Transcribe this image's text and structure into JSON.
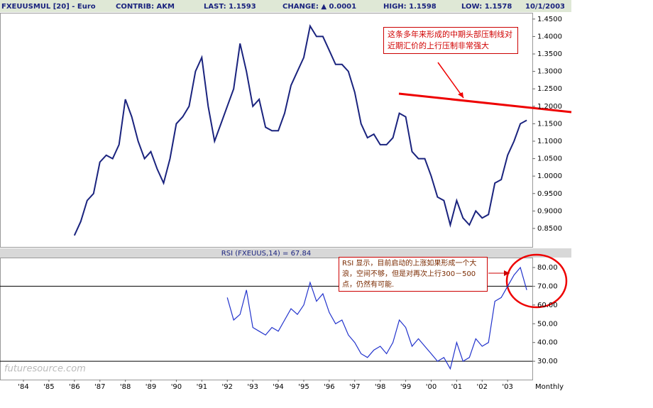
{
  "header": {
    "title": "FXEUUSMUL [20] - Euro",
    "contrib": "CONTRIB: AKM",
    "last": "LAST: 1.1593",
    "change": "CHANGE: ▲ 0.0001",
    "high": "HIGH: 1.1598",
    "low": "LOW: 1.1578",
    "date": "10/1/2003"
  },
  "chart_data": [
    {
      "type": "line",
      "color": "#1a237e",
      "x": [
        1986,
        1986.25,
        1986.5,
        1986.75,
        1987,
        1987.25,
        1987.5,
        1987.75,
        1988,
        1988.25,
        1988.5,
        1988.75,
        1989,
        1989.25,
        1989.5,
        1989.75,
        1990,
        1990.25,
        1990.5,
        1990.75,
        1991,
        1991.25,
        1991.5,
        1991.75,
        1992,
        1992.25,
        1992.5,
        1992.75,
        1993,
        1993.25,
        1993.5,
        1993.75,
        1994,
        1994.25,
        1994.5,
        1994.75,
        1995,
        1995.25,
        1995.5,
        1995.75,
        1996,
        1996.25,
        1996.5,
        1996.75,
        1997,
        1997.25,
        1997.5,
        1997.75,
        1998,
        1998.25,
        1998.5,
        1998.75,
        1999,
        1999.25,
        1999.5,
        1999.75,
        2000,
        2000.25,
        2000.5,
        2000.75,
        2001,
        2001.25,
        2001.5,
        2001.75,
        2002,
        2002.25,
        2002.5,
        2002.75,
        2003,
        2003.25,
        2003.5,
        2003.75
      ],
      "values": [
        0.83,
        0.87,
        0.93,
        0.95,
        1.04,
        1.06,
        1.05,
        1.09,
        1.22,
        1.17,
        1.1,
        1.05,
        1.07,
        1.02,
        0.98,
        1.05,
        1.15,
        1.17,
        1.2,
        1.3,
        1.34,
        1.2,
        1.1,
        1.15,
        1.2,
        1.25,
        1.38,
        1.3,
        1.2,
        1.22,
        1.14,
        1.13,
        1.13,
        1.18,
        1.26,
        1.3,
        1.34,
        1.43,
        1.4,
        1.4,
        1.36,
        1.32,
        1.32,
        1.3,
        1.24,
        1.15,
        1.11,
        1.12,
        1.09,
        1.09,
        1.11,
        1.18,
        1.17,
        1.07,
        1.05,
        1.05,
        1,
        0.94,
        0.93,
        0.86,
        0.93,
        0.88,
        0.86,
        0.9,
        0.88,
        0.89,
        0.98,
        0.99,
        1.06,
        1.1,
        1.15,
        1.16
      ],
      "xlim": [
        1983.08,
        2003.97
      ],
      "ylim": [
        0.797,
        1.468
      ],
      "yticks": [
        {
          "value": 0.85,
          "label": "0.8500"
        },
        {
          "value": 0.9,
          "label": "0.9000"
        },
        {
          "value": 0.95,
          "label": "0.9500"
        },
        {
          "value": 1.0,
          "label": "1.0000"
        },
        {
          "value": 1.05,
          "label": "1.0500"
        },
        {
          "value": 1.1,
          "label": "1.1000"
        },
        {
          "value": 1.15,
          "label": "1.1500"
        },
        {
          "value": 1.2,
          "label": "1.2000"
        },
        {
          "value": 1.25,
          "label": "1.2500"
        },
        {
          "value": 1.3,
          "label": "1.3000"
        },
        {
          "value": 1.35,
          "label": "1.3500"
        },
        {
          "value": 1.4,
          "label": "1.4000"
        },
        {
          "value": 1.45,
          "label": "1.4500"
        }
      ]
    },
    {
      "type": "line",
      "title": "RSI (FXEUUS,14) = 67.84",
      "color": "#2233cc",
      "x": [
        1992,
        1992.25,
        1992.5,
        1992.75,
        1993,
        1993.25,
        1993.5,
        1993.75,
        1994,
        1994.25,
        1994.5,
        1994.75,
        1995,
        1995.25,
        1995.5,
        1995.75,
        1996,
        1996.25,
        1996.5,
        1996.75,
        1997,
        1997.25,
        1997.5,
        1997.75,
        1998,
        1998.25,
        1998.5,
        1998.75,
        1999,
        1999.25,
        1999.5,
        1999.75,
        2000,
        2000.25,
        2000.5,
        2000.75,
        2001,
        2001.25,
        2001.5,
        2001.75,
        2002,
        2002.25,
        2002.5,
        2002.75,
        2003,
        2003.25,
        2003.5,
        2003.75
      ],
      "values": [
        64,
        52,
        55,
        68,
        48,
        46,
        44,
        48,
        46,
        52,
        58,
        55,
        60,
        72,
        62,
        66,
        56,
        50,
        52,
        44,
        40,
        34,
        32,
        36,
        38,
        34,
        40,
        52,
        48,
        38,
        42,
        38,
        34,
        30,
        32,
        26,
        40,
        30,
        32,
        42,
        38,
        40,
        62,
        64,
        70,
        76,
        80,
        68
      ],
      "xlim": [
        1983.08,
        2003.97
      ],
      "ylim": [
        20.2,
        85.3
      ],
      "yticks": [
        {
          "value": 30,
          "label": "30.00"
        },
        {
          "value": 40,
          "label": "40.00"
        },
        {
          "value": 50,
          "label": "50.00"
        },
        {
          "value": 60,
          "label": "60.00"
        },
        {
          "value": 70,
          "label": "70.00"
        },
        {
          "value": 80,
          "label": "80.00"
        }
      ],
      "hlines": [
        70,
        30
      ],
      "xticks": [
        {
          "value": 1984,
          "label": "'84"
        },
        {
          "value": 1985,
          "label": "'85"
        },
        {
          "value": 1986,
          "label": "'86"
        },
        {
          "value": 1987,
          "label": "'87"
        },
        {
          "value": 1988,
          "label": "'88"
        },
        {
          "value": 1989,
          "label": "'89"
        },
        {
          "value": 1990,
          "label": "'90"
        },
        {
          "value": 1991,
          "label": "'91"
        },
        {
          "value": 1992,
          "label": "'92"
        },
        {
          "value": 1993,
          "label": "'93"
        },
        {
          "value": 1994,
          "label": "'94"
        },
        {
          "value": 1995,
          "label": "'95"
        },
        {
          "value": 1996,
          "label": "'96"
        },
        {
          "value": 1997,
          "label": "'97"
        },
        {
          "value": 1998,
          "label": "'98"
        },
        {
          "value": 1999,
          "label": "'99"
        },
        {
          "value": 2000,
          "label": "'00"
        },
        {
          "value": 2001,
          "label": "'01"
        },
        {
          "value": 2002,
          "label": "'02"
        },
        {
          "value": 2003,
          "label": "'03"
        }
      ],
      "xlabel": "Monthly"
    }
  ],
  "annotations": [
    "这条多年来形成的中期头部压制线对近期汇价的上行压制非常强大",
    "RSI 显示，目前启动的上涨如果形成一个大浪，空间不够，但是对再次上行300－500点，仍然有可能."
  ],
  "watermark": "futuresource.com"
}
